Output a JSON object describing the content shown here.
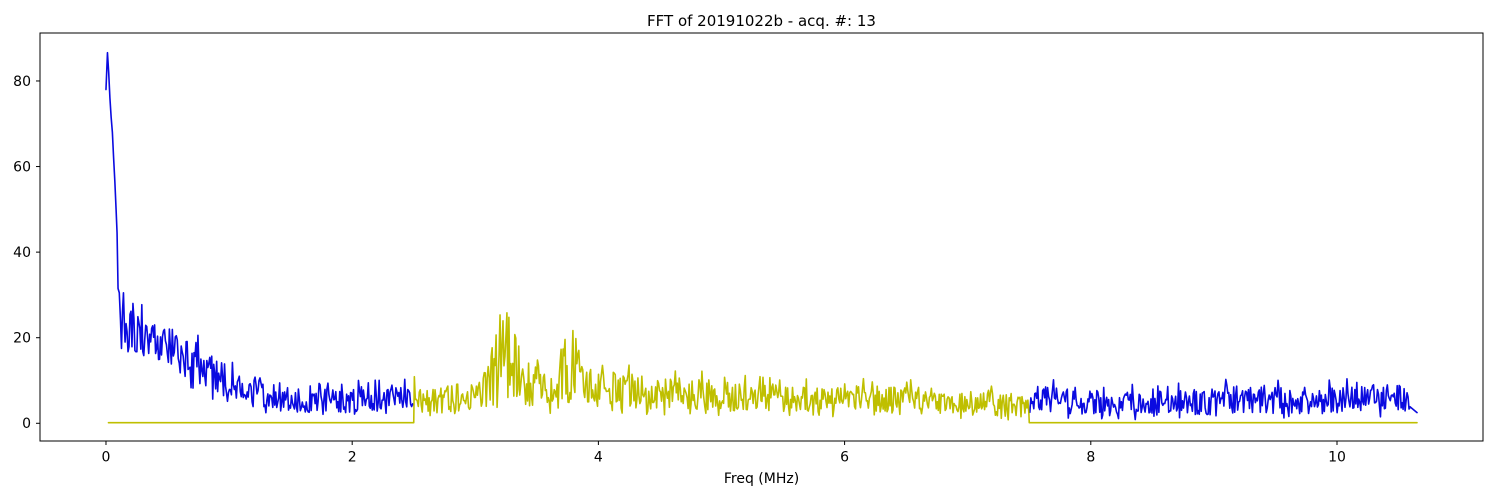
{
  "figure": {
    "background": "#ffffff",
    "title": "FFT of 20191022b - acq. #: 13"
  },
  "chart_data": {
    "type": "line",
    "title": "FFT of 20191022b - acq. #: 13",
    "xlabel": "Freq (MHz)",
    "ylabel": "",
    "xlim": [
      -0.536,
      11.186
    ],
    "ylim": [
      -4.14,
      91.21
    ],
    "xticks": [
      0,
      2,
      4,
      6,
      8,
      10
    ],
    "yticks": [
      0,
      20,
      40,
      60,
      80
    ],
    "grid": false,
    "legend": "none",
    "description": "Two noisy FFT magnitude traces. Blue trace: strong low-frequency peak (max ~86.6 near 0 MHz) decaying to ~5 by 1.5 MHz, plotted over 0-2.5 MHz, absent 2.5-7.5 MHz, then noisy ~5 over 7.5-10.65 MHz. Yellow trace: flat at 0 over 0-2.5 MHz and 7.5-10.65 MHz, noisy ~5-9 over 2.5-7.5 MHz with peak cluster up to ~28.7 near 3.25 MHz and ~20.5 near 3.75 MHz.",
    "series": [
      {
        "name": "fft-blue",
        "color": "#0a0ae0",
        "line_width": 1.6,
        "parts": [
          {
            "seed": 101,
            "step": 0.008,
            "head": [
              [
                0.0,
                78
              ],
              [
                0.012,
                86.6
              ],
              [
                0.022,
                82
              ],
              [
                0.032,
                76
              ],
              [
                0.042,
                71.5
              ],
              [
                0.052,
                68
              ],
              [
                0.062,
                62
              ],
              [
                0.072,
                56.5
              ],
              [
                0.082,
                50
              ],
              [
                0.09,
                44.5
              ],
              [
                0.098,
                31.5
              ],
              [
                0.108,
                30.5
              ],
              [
                0.118,
                24
              ],
              [
                0.126,
                17.5
              ],
              [
                0.134,
                26
              ],
              [
                0.142,
                30.5
              ],
              [
                0.15,
                22.5
              ]
            ],
            "envelope": [
              [
                0.155,
                23,
                5.5
              ],
              [
                0.3,
                20.5,
                5
              ],
              [
                0.45,
                18.5,
                5
              ],
              [
                0.6,
                16,
                5
              ],
              [
                0.75,
                14.5,
                5.5
              ],
              [
                0.9,
                11,
                4.5
              ],
              [
                1.05,
                9,
                4
              ],
              [
                1.2,
                7.5,
                3.8
              ],
              [
                1.35,
                6.2,
                3.2
              ],
              [
                1.5,
                5.4,
                2.8
              ],
              [
                1.7,
                5.2,
                2.8
              ],
              [
                1.9,
                5.4,
                3
              ],
              [
                2.1,
                5.6,
                3.2
              ],
              [
                2.3,
                5.2,
                3
              ],
              [
                2.5,
                6,
                3.5
              ]
            ],
            "tail": []
          },
          {
            "seed": 202,
            "step": 0.008,
            "head": [],
            "envelope": [
              [
                7.505,
                6,
                3.2
              ],
              [
                7.8,
                5,
                3
              ],
              [
                8.1,
                4.8,
                2.8
              ],
              [
                8.4,
                4.6,
                2.8
              ],
              [
                8.7,
                4.8,
                3
              ],
              [
                9.0,
                5,
                3
              ],
              [
                9.3,
                6,
                3.5
              ],
              [
                9.6,
                5.2,
                3
              ],
              [
                9.9,
                5.2,
                3
              ],
              [
                10.2,
                5.8,
                3.2
              ],
              [
                10.45,
                6,
                3.4
              ],
              [
                10.6,
                5.5,
                3
              ]
            ],
            "tail": [
              [
                10.65,
                2.5
              ]
            ]
          }
        ]
      },
      {
        "name": "fft-yellow",
        "color": "#bfbf00",
        "line_width": 1.6,
        "parts": [
          {
            "seed": 303,
            "step": 0.008,
            "head": [
              [
                0.02,
                0.15
              ],
              [
                2.5,
                0.15
              ]
            ],
            "envelope": [
              [
                2.505,
                7,
                4.5
              ],
              [
                2.65,
                5.5,
                3
              ],
              [
                2.85,
                6,
                3.2
              ],
              [
                3.0,
                6.5,
                3.5
              ],
              [
                3.1,
                9,
                5
              ],
              [
                3.18,
                14,
                8
              ],
              [
                3.25,
                19,
                9.5
              ],
              [
                3.32,
                14,
                8
              ],
              [
                3.42,
                9,
                5
              ],
              [
                3.52,
                10,
                5.5
              ],
              [
                3.62,
                8,
                4.5
              ],
              [
                3.72,
                12.5,
                7.5
              ],
              [
                3.82,
                11.5,
                7
              ],
              [
                3.92,
                8,
                4.5
              ],
              [
                4.02,
                9,
                4.8
              ],
              [
                4.15,
                7.5,
                4
              ],
              [
                4.35,
                7.5,
                4.2
              ],
              [
                4.6,
                7,
                3.8
              ],
              [
                4.85,
                6.8,
                3.6
              ],
              [
                5.1,
                6.2,
                3.4
              ],
              [
                5.4,
                5.8,
                3.2
              ],
              [
                5.7,
                5.6,
                3
              ],
              [
                6.0,
                5.6,
                3.1
              ],
              [
                6.3,
                5.6,
                3.3
              ],
              [
                6.6,
                5.4,
                3
              ],
              [
                6.9,
                5.2,
                3
              ],
              [
                7.15,
                4.6,
                2.8
              ],
              [
                7.35,
                4.2,
                2.6
              ],
              [
                7.5,
                4.4,
                2.6
              ]
            ],
            "tail": [
              [
                7.5,
                0.15
              ],
              [
                10.65,
                0.15
              ]
            ]
          }
        ]
      }
    ]
  }
}
